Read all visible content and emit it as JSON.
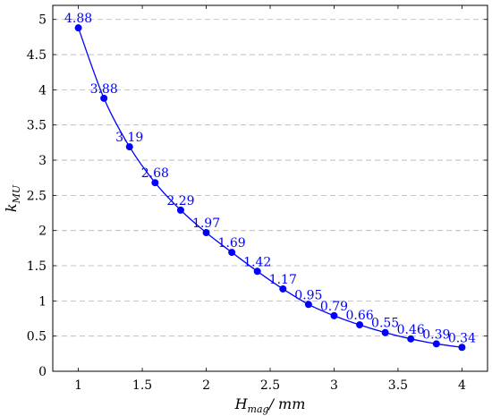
{
  "chart_data": {
    "type": "line",
    "xlabel_main": "H",
    "xlabel_sub": "mag",
    "xlabel_unit": "/ mm",
    "ylabel_main": "k",
    "ylabel_sub": "MU",
    "xlim": [
      0.8,
      4.2
    ],
    "ylim": [
      0,
      5.2
    ],
    "grid": "horizontal dashed",
    "line_color": "#0000ff",
    "x_ticks": [
      1,
      1.5,
      2,
      2.5,
      3,
      3.5,
      4
    ],
    "x_tick_labels": [
      "1",
      "1.5",
      "2",
      "2.5",
      "3",
      "3.5",
      "4"
    ],
    "y_ticks": [
      0,
      0.5,
      1,
      1.5,
      2,
      2.5,
      3,
      3.5,
      4,
      4.5,
      5
    ],
    "y_tick_labels": [
      "0",
      "0.5",
      "1",
      "1.5",
      "2",
      "2.5",
      "3",
      "3.5",
      "4",
      "4.5",
      "5"
    ],
    "x": [
      1.0,
      1.2,
      1.4,
      1.6,
      1.8,
      2.0,
      2.2,
      2.4,
      2.6,
      2.8,
      3.0,
      3.2,
      3.4,
      3.6,
      3.8,
      4.0
    ],
    "y": [
      4.88,
      3.88,
      3.19,
      2.68,
      2.29,
      1.97,
      1.69,
      1.42,
      1.17,
      0.95,
      0.79,
      0.66,
      0.55,
      0.46,
      0.39,
      0.34
    ],
    "data_labels": [
      "4.88",
      "3.88",
      "3.19",
      "2.68",
      "2.29",
      "1.97",
      "1.69",
      "1.42",
      "1.17",
      "0.95",
      "0.79",
      "0.66",
      "0.55",
      "0.46",
      "0.39",
      "0.34"
    ]
  }
}
